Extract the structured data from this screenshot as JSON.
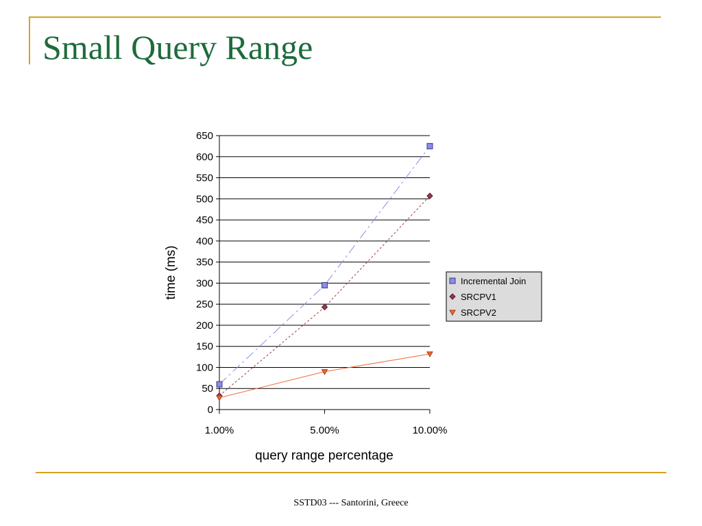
{
  "slide": {
    "title": "Small Query Range",
    "footer": "SSTD03 --- Santorini, Greece",
    "accent_color": "#d4a21e",
    "title_color": "#1e6b3c"
  },
  "chart_data": {
    "type": "line",
    "title": "",
    "xlabel": "query range percentage",
    "ylabel": "time (ms)",
    "categories": [
      "1.00%",
      "5.00%",
      "10.00%"
    ],
    "ylim": [
      0,
      650
    ],
    "yticks": [
      0,
      50,
      100,
      150,
      200,
      250,
      300,
      350,
      400,
      450,
      500,
      550,
      600,
      650
    ],
    "grid": true,
    "legend_position": "right",
    "series": [
      {
        "name": "Incremental Join",
        "values": [
          60,
          295,
          625
        ],
        "color": "#8c8ce6",
        "marker": "square",
        "line_style": "dashdot"
      },
      {
        "name": "SRCPV1",
        "values": [
          33,
          243,
          507
        ],
        "color": "#9a3a4a",
        "marker": "diamond",
        "line_style": "dotted"
      },
      {
        "name": "SRCPV2",
        "values": [
          28,
          90,
          132
        ],
        "color": "#ef6a3a",
        "marker": "triangle-down",
        "line_style": "solid"
      }
    ]
  }
}
